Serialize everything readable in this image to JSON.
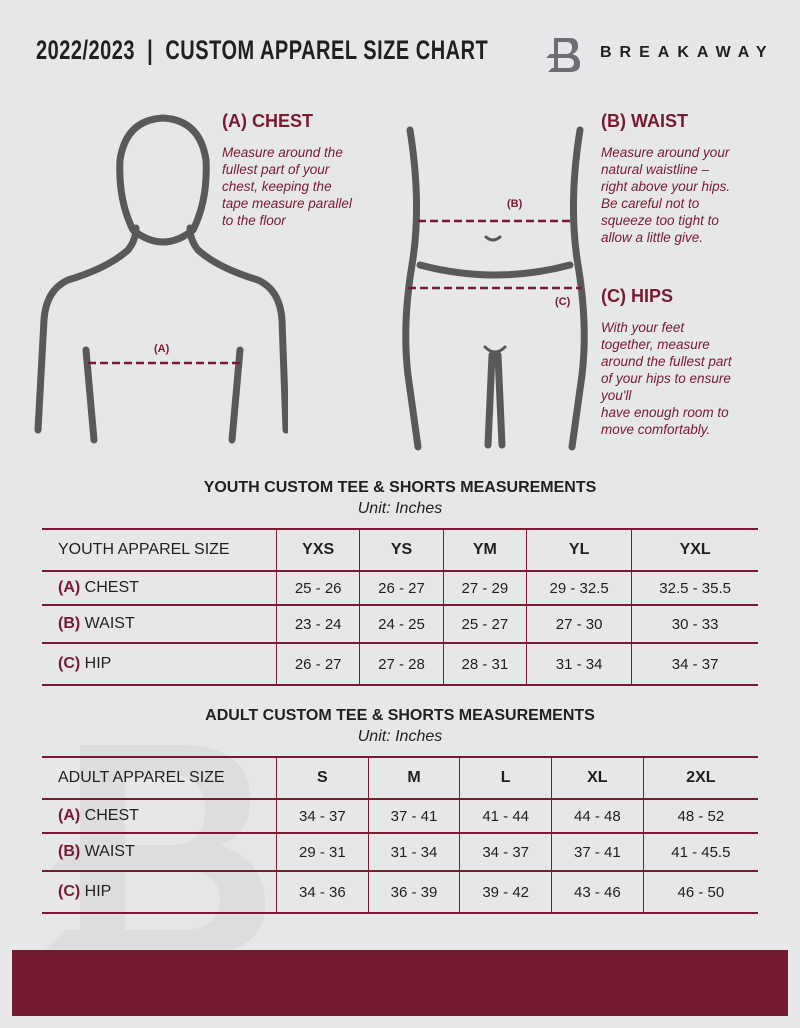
{
  "header": {
    "title": "2022/2023  |  CUSTOM APPAREL SIZE CHART",
    "brand": "BREAKAWAY",
    "watermark": "B"
  },
  "colors": {
    "accent": "#7a1a30",
    "footer": "#731a2e",
    "background": "#e6e7e8"
  },
  "chest": {
    "heading": "(A) CHEST",
    "desc": [
      "Measure around the",
      "fullest part of your",
      "chest, keeping the",
      "tape measure parallel",
      "to the floor"
    ],
    "marker": "(A)"
  },
  "waist": {
    "heading": "(B) WAIST",
    "desc": [
      "Measure around your",
      "natural waistline –",
      "right above your hips.",
      "Be careful not to",
      "squeeze too tight to",
      "allow a little give."
    ],
    "marker": "(B)"
  },
  "hips": {
    "heading": "(C) HIPS",
    "desc": [
      "With your feet",
      "together, measure",
      "around the fullest part",
      "of your hips to ensure",
      "you'll",
      "have enough room to",
      "move comfortably."
    ],
    "marker": "(C)"
  },
  "tables": [
    {
      "title": "YOUTH CUSTOM TEE & SHORTS MEASUREMENTS",
      "unit": "Unit: Inches",
      "header": "YOUTH APPAREL SIZE",
      "sizes": [
        "YXS",
        "YS",
        "YM",
        "YL",
        "YXL"
      ],
      "rows": [
        {
          "letter": "(A)",
          "label": "CHEST",
          "values": [
            "25 - 26",
            "26 - 27",
            "27 - 29",
            "29 - 32.5",
            "32.5 - 35.5"
          ]
        },
        {
          "letter": "(B)",
          "label": "WAIST",
          "values": [
            "23 - 24",
            "24 - 25",
            "25 - 27",
            "27 - 30",
            "30 - 33"
          ]
        },
        {
          "letter": "(C)",
          "label": "HIP",
          "values": [
            "26 - 27",
            "27 - 28",
            "28 - 31",
            "31 - 34",
            "34 - 37"
          ]
        }
      ]
    },
    {
      "title": "ADULT CUSTOM TEE & SHORTS MEASUREMENTS",
      "unit": "Unit: Inches",
      "header": "ADULT APPAREL SIZE",
      "sizes": [
        "S",
        "M",
        "L",
        "XL",
        "2XL"
      ],
      "rows": [
        {
          "letter": "(A)",
          "label": "CHEST",
          "values": [
            "34 - 37",
            "37 - 41",
            "41 - 44",
            "44 - 48",
            "48 - 52"
          ]
        },
        {
          "letter": "(B)",
          "label": "WAIST",
          "values": [
            "29 - 31",
            "31 - 34",
            "34 - 37",
            "37 - 41",
            "41 - 45.5"
          ]
        },
        {
          "letter": "(C)",
          "label": "HIP",
          "values": [
            "34 - 36",
            "36 - 39",
            "39 - 42",
            "43 - 46",
            "46 - 50"
          ]
        }
      ]
    }
  ]
}
